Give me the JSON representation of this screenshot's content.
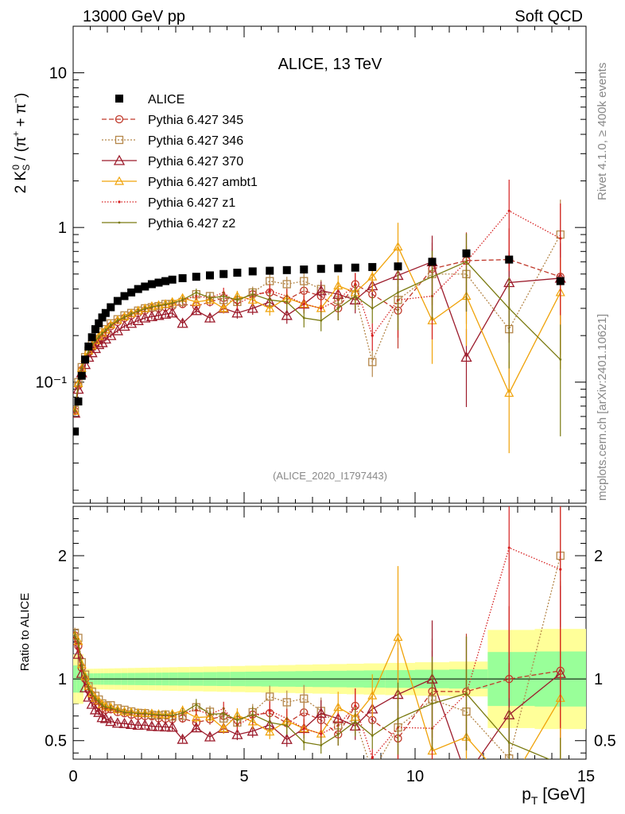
{
  "header": {
    "left": "13000 GeV pp",
    "right": "Soft QCD"
  },
  "side_labels": {
    "rivet": "Rivet 4.1.0, ≥ 400k events",
    "mcplots": "mcplots.cern.ch [arXiv:2401.10621]"
  },
  "colors": {
    "alice": "#000000",
    "p345": "#c0392b",
    "p346": "#b5874a",
    "p370": "#9c1b2b",
    "ambt1": "#f0a30a",
    "z1": "#d62020",
    "z2": "#7a7a10",
    "band_stat": "#99ff99",
    "band_tot": "#ffff99"
  },
  "chart_data": {
    "type": "line",
    "title": "ALICE, 13 TeV",
    "analysis_id": "(ALICE_2020_I1797443)",
    "ylabel_main": "2 K_S^0 / (π⁺ + π⁻)",
    "ylabel_ratio": "Ratio to ALICE",
    "xlabel": "p_T [GeV]",
    "xlim": [
      0,
      15
    ],
    "ylim_main": [
      0.0165,
      20
    ],
    "ylim_ratio": [
      0.35,
      2.4
    ],
    "yscale_main": "log",
    "xticks": [
      0,
      5,
      10,
      15
    ],
    "yticks_main": [
      {
        "v": 10,
        "label": "10"
      },
      {
        "v": 1,
        "label": "1"
      },
      {
        "v": 0.1,
        "label": "10⁻¹"
      }
    ],
    "yticks_ratio": [
      {
        "v": 0.5,
        "label": "0.5"
      },
      {
        "v": 1,
        "label": "1"
      },
      {
        "v": 2,
        "label": "2"
      }
    ],
    "legend_placement": "top-left",
    "x": [
      0.05,
      0.15,
      0.25,
      0.35,
      0.45,
      0.55,
      0.65,
      0.75,
      0.85,
      0.95,
      1.1,
      1.3,
      1.5,
      1.7,
      1.9,
      2.1,
      2.3,
      2.5,
      2.7,
      2.9,
      3.2,
      3.6,
      4.0,
      4.4,
      4.8,
      5.25,
      5.75,
      6.25,
      6.75,
      7.25,
      7.75,
      8.25,
      8.75,
      9.5,
      10.5,
      11.5,
      12.75,
      14.25
    ],
    "alice": [
      0.048,
      0.075,
      0.11,
      0.14,
      0.17,
      0.195,
      0.22,
      0.24,
      0.262,
      0.28,
      0.305,
      0.335,
      0.36,
      0.38,
      0.4,
      0.415,
      0.43,
      0.44,
      0.45,
      0.46,
      0.47,
      0.48,
      0.49,
      0.5,
      0.51,
      0.52,
      0.525,
      0.53,
      0.535,
      0.54,
      0.545,
      0.55,
      0.555,
      0.56,
      0.6,
      0.68,
      0.62,
      0.45
    ],
    "series": [
      {
        "name": "Pythia 6.427 345",
        "key": "p345",
        "marker": "circle",
        "dash": "6,3",
        "values": [
          0.065,
          0.095,
          0.12,
          0.14,
          0.155,
          0.17,
          0.18,
          0.19,
          0.2,
          0.21,
          0.23,
          0.245,
          0.26,
          0.27,
          0.28,
          0.29,
          0.3,
          0.3,
          0.305,
          0.31,
          0.32,
          0.31,
          0.33,
          0.35,
          0.34,
          0.37,
          0.38,
          0.34,
          0.39,
          0.36,
          0.3,
          0.43,
          0.37,
          0.29,
          0.54,
          0.61,
          0.62,
          0.48
        ]
      },
      {
        "name": "Pythia 6.427 346",
        "key": "p346",
        "marker": "square",
        "dash": "2,2",
        "values": [
          0.066,
          0.1,
          0.125,
          0.145,
          0.16,
          0.175,
          0.19,
          0.2,
          0.21,
          0.22,
          0.24,
          0.255,
          0.27,
          0.28,
          0.29,
          0.3,
          0.305,
          0.31,
          0.32,
          0.32,
          0.33,
          0.37,
          0.36,
          0.34,
          0.33,
          0.38,
          0.45,
          0.43,
          0.45,
          0.4,
          0.34,
          0.37,
          0.135,
          0.34,
          0.5,
          0.5,
          0.22,
          0.9
        ]
      },
      {
        "name": "Pythia 6.427 370",
        "key": "p370",
        "marker": "triangle",
        "dash": "",
        "values": [
          0.063,
          0.09,
          0.115,
          0.13,
          0.145,
          0.155,
          0.165,
          0.175,
          0.18,
          0.19,
          0.2,
          0.215,
          0.23,
          0.24,
          0.25,
          0.26,
          0.265,
          0.27,
          0.275,
          0.28,
          0.24,
          0.29,
          0.26,
          0.3,
          0.28,
          0.3,
          0.33,
          0.27,
          0.32,
          0.39,
          0.37,
          0.34,
          0.42,
          0.49,
          0.6,
          0.145,
          0.44,
          0.47
        ]
      },
      {
        "name": "Pythia 6.427 ambt1",
        "key": "ambt1",
        "marker": "triangle-small",
        "dash": "",
        "values": [
          0.065,
          0.098,
          0.123,
          0.143,
          0.16,
          0.172,
          0.186,
          0.198,
          0.208,
          0.218,
          0.235,
          0.252,
          0.265,
          0.278,
          0.29,
          0.3,
          0.31,
          0.315,
          0.32,
          0.33,
          0.35,
          0.33,
          0.34,
          0.3,
          0.36,
          0.34,
          0.3,
          0.35,
          0.32,
          0.3,
          0.42,
          0.38,
          0.48,
          0.75,
          0.25,
          0.36,
          0.085,
          0.38
        ]
      },
      {
        "name": "Pythia 6.427 z1",
        "key": "z1",
        "marker": "dot",
        "dash": "1.5,2",
        "values": [
          0.064,
          0.094,
          0.12,
          0.14,
          0.156,
          0.17,
          0.182,
          0.193,
          0.203,
          0.213,
          0.23,
          0.247,
          0.262,
          0.274,
          0.285,
          0.296,
          0.304,
          0.31,
          0.316,
          0.322,
          0.34,
          0.36,
          0.35,
          0.38,
          0.32,
          0.36,
          0.39,
          0.36,
          0.32,
          0.3,
          0.34,
          0.43,
          0.2,
          0.34,
          0.36,
          0.6,
          1.28,
          0.85
        ]
      },
      {
        "name": "Pythia 6.427 z2",
        "key": "z2",
        "marker": "dot-small",
        "dash": "",
        "values": [
          0.065,
          0.097,
          0.122,
          0.142,
          0.158,
          0.172,
          0.185,
          0.196,
          0.206,
          0.216,
          0.233,
          0.25,
          0.263,
          0.276,
          0.288,
          0.298,
          0.306,
          0.312,
          0.318,
          0.324,
          0.34,
          0.38,
          0.35,
          0.36,
          0.34,
          0.37,
          0.34,
          0.33,
          0.26,
          0.25,
          0.3,
          0.36,
          0.3,
          0.38,
          0.48,
          0.6,
          0.3,
          0.14
        ]
      }
    ]
  }
}
